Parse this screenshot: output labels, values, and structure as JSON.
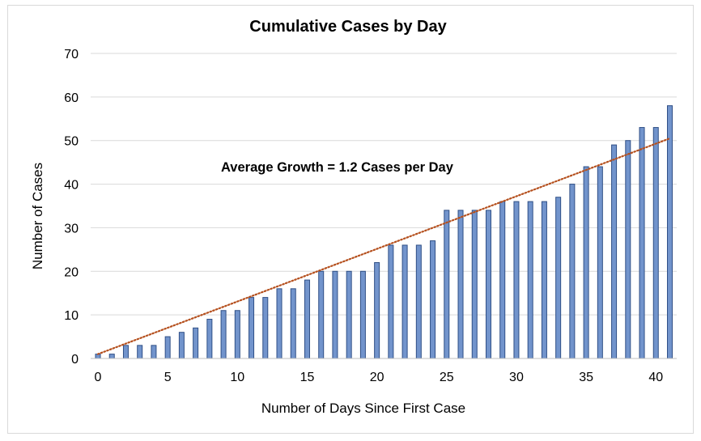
{
  "chart_data": {
    "type": "bar",
    "title": "Cumulative Cases by Day",
    "xlabel": "Number of Days Since First Case",
    "ylabel": "Number of Cases",
    "annotation": "Average Growth = 1.2 Cases per Day",
    "xlim": [
      0,
      41
    ],
    "ylim": [
      0,
      70
    ],
    "x_ticks": [
      0,
      5,
      10,
      15,
      20,
      25,
      30,
      35,
      40
    ],
    "y_ticks": [
      0,
      10,
      20,
      30,
      40,
      50,
      60,
      70
    ],
    "grid": "horizontal",
    "legend": "none",
    "x": [
      0,
      1,
      2,
      3,
      4,
      5,
      6,
      7,
      8,
      9,
      10,
      11,
      12,
      13,
      14,
      15,
      16,
      17,
      18,
      19,
      20,
      21,
      22,
      23,
      24,
      25,
      26,
      27,
      28,
      29,
      30,
      31,
      32,
      33,
      34,
      35,
      36,
      37,
      38,
      39,
      40,
      41
    ],
    "values": [
      1,
      1,
      3,
      3,
      3,
      5,
      6,
      7,
      9,
      11,
      11,
      14,
      14,
      16,
      16,
      18,
      20,
      20,
      20,
      20,
      22,
      26,
      26,
      26,
      27,
      34,
      34,
      34,
      34,
      36,
      36,
      36,
      36,
      37,
      40,
      44,
      44,
      49,
      50,
      53,
      53,
      58
    ],
    "trendline": {
      "type": "linear",
      "start": [
        0,
        1
      ],
      "end": [
        41,
        50.5
      ]
    },
    "colors": {
      "bar_fill": "#7294cc",
      "bar_stroke": "#2f4f86",
      "trendline": "#b5501e",
      "grid": "#d9d9d9"
    }
  }
}
